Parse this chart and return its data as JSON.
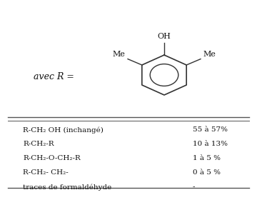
{
  "avec_r_text": "avec R =",
  "oh_label": "OH",
  "me_left": "Me",
  "me_right": "Me",
  "rows": [
    {
      "compound": "R-CH₂ OH (inchangé)",
      "value": "55 à 57%"
    },
    {
      "compound": "R-CH₂-R",
      "value": "10 à 13%"
    },
    {
      "compound": "R-CH₂-O-CH₂-R",
      "value": "1 à 5 %"
    },
    {
      "compound": "R-CH₂- CH₂-",
      "value": "0 à 5 %"
    },
    {
      "compound": "traces de formaldéhyde",
      "value": "-"
    }
  ],
  "background_color": "#ffffff",
  "line_color": "#333333",
  "text_color": "#111111",
  "fontsize": 7.5,
  "fontsize_chem": 7.5
}
